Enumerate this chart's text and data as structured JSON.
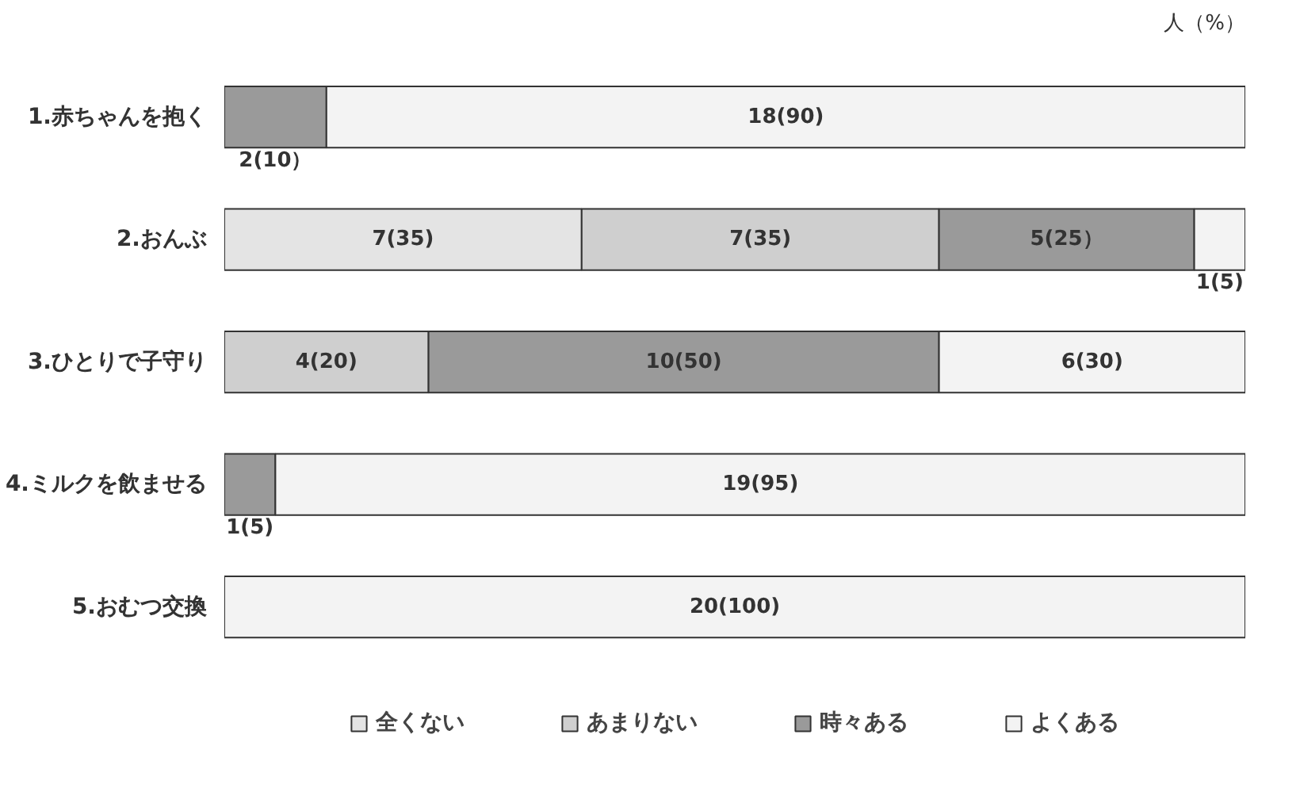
{
  "chart_data": {
    "type": "bar",
    "orientation": "horizontal",
    "stacked": true,
    "categories": [
      "1.赤ちゃんを抱く",
      "2.おんぶ",
      "3.ひとりで子守り",
      "4.ミルクを飲ませる",
      "5.おむつ交換"
    ],
    "series": [
      {
        "name": "全くない",
        "color": "#e4e4e4",
        "values": [
          null,
          7,
          null,
          null,
          null
        ],
        "value_labels": [
          null,
          "7(35)",
          null,
          null,
          null
        ]
      },
      {
        "name": "あまりない",
        "color": "#cfcfcf",
        "values": [
          null,
          7,
          4,
          null,
          null
        ],
        "value_labels": [
          null,
          "7(35)",
          "4(20)",
          null,
          null
        ]
      },
      {
        "name": "時々ある",
        "color": "#9a9a9a",
        "values": [
          2,
          5,
          10,
          1,
          null
        ],
        "value_labels": [
          "2(10）",
          "5(25）",
          "10(50)",
          "1(5)",
          null
        ]
      },
      {
        "name": "よくある",
        "color": "#f3f3f3",
        "values": [
          18,
          1,
          6,
          19,
          20
        ],
        "value_labels": [
          "18(90)",
          "1(5)",
          "6(30)",
          "19(95)",
          "20(100)"
        ]
      }
    ],
    "xlim": [
      0,
      20
    ],
    "tick_labels": "y",
    "grid": false,
    "legend": "bottom",
    "annotations": [
      "人（%）"
    ]
  }
}
